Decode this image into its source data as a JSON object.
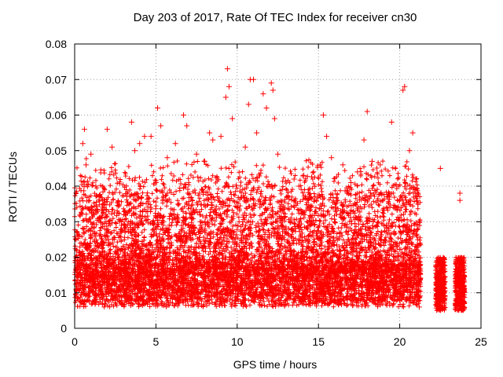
{
  "chart_data": {
    "type": "scatter",
    "title": "Day 203 of 2017, Rate Of TEC Index for receiver cn30",
    "xlabel": "GPS time / hours",
    "ylabel": "ROTI / TECUs",
    "xlim": [
      0,
      25
    ],
    "ylim": [
      0,
      0.08
    ],
    "xticks": [
      0,
      5,
      10,
      15,
      20,
      25
    ],
    "yticks": [
      0,
      0.01,
      0.02,
      0.03,
      0.04,
      0.05,
      0.06,
      0.07,
      0.08
    ],
    "xtick_labels": [
      "0",
      "5",
      "10",
      "15",
      "20",
      "25"
    ],
    "ytick_labels": [
      "0",
      "0.01",
      "0.02",
      "0.03",
      "0.04",
      "0.05",
      "0.06",
      "0.07",
      "0.08"
    ],
    "grid": true,
    "marker": "+",
    "color": "#ff0000",
    "series": [
      {
        "points": [
          [
            0.3,
            0.026
          ],
          [
            0.5,
            0.052
          ],
          [
            0.6,
            0.056
          ],
          [
            0.7,
            0.046
          ],
          [
            1.0,
            0.049
          ],
          [
            1.3,
            0.04
          ],
          [
            2.0,
            0.056
          ],
          [
            2.3,
            0.051
          ],
          [
            3.5,
            0.058
          ],
          [
            3.7,
            0.05
          ],
          [
            4.0,
            0.052
          ],
          [
            4.3,
            0.054
          ],
          [
            4.7,
            0.054
          ],
          [
            5.1,
            0.062
          ],
          [
            5.3,
            0.057
          ],
          [
            5.7,
            0.048
          ],
          [
            6.2,
            0.052
          ],
          [
            6.7,
            0.06
          ],
          [
            6.9,
            0.057
          ],
          [
            7.5,
            0.049
          ],
          [
            8.0,
            0.047
          ],
          [
            8.3,
            0.055
          ],
          [
            8.5,
            0.053
          ],
          [
            9.0,
            0.054
          ],
          [
            9.3,
            0.065
          ],
          [
            9.4,
            0.073
          ],
          [
            9.5,
            0.068
          ],
          [
            9.7,
            0.059
          ],
          [
            10.5,
            0.051
          ],
          [
            10.7,
            0.063
          ],
          [
            10.8,
            0.07
          ],
          [
            11.0,
            0.07
          ],
          [
            11.2,
            0.055
          ],
          [
            11.6,
            0.066
          ],
          [
            11.8,
            0.062
          ],
          [
            12.1,
            0.069
          ],
          [
            12.2,
            0.067
          ],
          [
            12.3,
            0.059
          ],
          [
            12.5,
            0.049
          ],
          [
            13.5,
            0.042
          ],
          [
            13.8,
            0.04
          ],
          [
            14.1,
            0.043
          ],
          [
            14.7,
            0.044
          ],
          [
            15.3,
            0.06
          ],
          [
            15.5,
            0.054
          ],
          [
            15.8,
            0.048
          ],
          [
            16.5,
            0.046
          ],
          [
            17.0,
            0.041
          ],
          [
            17.4,
            0.044
          ],
          [
            17.8,
            0.053
          ],
          [
            18.0,
            0.061
          ],
          [
            18.3,
            0.047
          ],
          [
            18.8,
            0.046
          ],
          [
            19.5,
            0.058
          ],
          [
            20.2,
            0.067
          ],
          [
            20.3,
            0.068
          ],
          [
            20.6,
            0.05
          ],
          [
            20.8,
            0.055
          ],
          [
            21.0,
            0.042
          ],
          [
            22.5,
            0.045
          ],
          [
            23.7,
            0.038
          ],
          [
            23.7,
            0.036
          ],
          [
            0.1,
            0.011
          ],
          [
            0.4,
            0.015
          ],
          [
            0.8,
            0.008
          ],
          [
            1.1,
            0.013
          ],
          [
            1.4,
            0.012
          ],
          [
            1.8,
            0.009
          ],
          [
            2.2,
            0.018
          ],
          [
            2.6,
            0.01
          ],
          [
            2.9,
            0.014
          ],
          [
            3.2,
            0.011
          ],
          [
            3.6,
            0.016
          ],
          [
            3.9,
            0.009
          ],
          [
            4.2,
            0.013
          ],
          [
            4.6,
            0.018
          ],
          [
            5.0,
            0.012
          ],
          [
            5.4,
            0.01
          ],
          [
            5.8,
            0.015
          ],
          [
            6.1,
            0.011
          ],
          [
            6.5,
            0.019
          ],
          [
            6.8,
            0.009
          ],
          [
            7.2,
            0.014
          ],
          [
            7.6,
            0.012
          ],
          [
            8.1,
            0.017
          ],
          [
            8.4,
            0.01
          ],
          [
            8.8,
            0.013
          ],
          [
            9.2,
            0.011
          ],
          [
            9.6,
            0.016
          ],
          [
            10.0,
            0.009
          ],
          [
            10.4,
            0.014
          ],
          [
            10.9,
            0.012
          ],
          [
            11.3,
            0.018
          ],
          [
            11.7,
            0.01
          ],
          [
            12.0,
            0.013
          ],
          [
            12.4,
            0.011
          ],
          [
            12.8,
            0.016
          ],
          [
            13.1,
            0.009
          ],
          [
            13.6,
            0.014
          ],
          [
            13.9,
            0.012
          ],
          [
            14.3,
            0.017
          ],
          [
            14.8,
            0.01
          ],
          [
            15.1,
            0.013
          ],
          [
            15.6,
            0.011
          ],
          [
            16.0,
            0.016
          ],
          [
            16.4,
            0.009
          ],
          [
            16.8,
            0.014
          ],
          [
            17.2,
            0.012
          ],
          [
            17.7,
            0.018
          ],
          [
            18.1,
            0.01
          ],
          [
            18.5,
            0.013
          ],
          [
            18.9,
            0.011
          ],
          [
            19.3,
            0.016
          ],
          [
            19.7,
            0.009
          ],
          [
            20.1,
            0.014
          ],
          [
            20.5,
            0.012
          ],
          [
            20.9,
            0.01
          ],
          [
            21.2,
            0.006
          ],
          [
            22.4,
            0.012
          ],
          [
            22.6,
            0.016
          ],
          [
            22.5,
            0.008
          ],
          [
            23.6,
            0.013
          ],
          [
            23.8,
            0.01
          ],
          [
            23.7,
            0.007
          ]
        ]
      }
    ]
  }
}
